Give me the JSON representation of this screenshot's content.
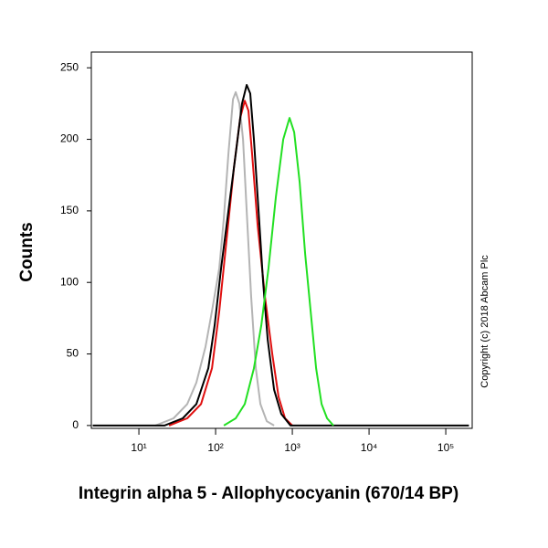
{
  "chart_data": {
    "type": "line",
    "xlabel": "Integrin alpha 5 - Allophycocyanin (670/14 BP)",
    "ylabel": "Counts",
    "annotation": "Copyright (c) 2018 Abcam Plc",
    "xscale": "log",
    "xlim": [
      2.4,
      221000
    ],
    "ylim": [
      -2,
      261
    ],
    "xticks": [
      {
        "value": 10,
        "label": "10¹"
      },
      {
        "value": 100,
        "label": "10²"
      },
      {
        "value": 1000,
        "label": "10³"
      },
      {
        "value": 10000,
        "label": "10⁴"
      },
      {
        "value": 100000,
        "label": "10⁵"
      }
    ],
    "yticks": [
      0,
      50,
      100,
      150,
      200,
      250
    ],
    "series": [
      {
        "color": "#b4b4b4",
        "x": [
          16.4,
          28.3,
          42.7,
          56.2,
          73.9,
          89.6,
          111.6,
          128,
          146.8,
          168.4,
          182.7,
          204,
          227.6,
          254,
          291,
          334,
          383,
          464,
          578
        ],
        "values": [
          0,
          5,
          15,
          30,
          55,
          80,
          110,
          145,
          190,
          228,
          233,
          225,
          200,
          150,
          90,
          40,
          15,
          3,
          0
        ]
      },
      {
        "color": "#e01010",
        "x": [
          24.7,
          42.7,
          64.5,
          89.6,
          111.6,
          139,
          173,
          209,
          240,
          268,
          299,
          353,
          440,
          547,
          662,
          803,
          1000
        ],
        "values": [
          0,
          5,
          15,
          40,
          80,
          130,
          180,
          215,
          227,
          220,
          190,
          140,
          90,
          50,
          20,
          5,
          0
        ]
      },
      {
        "color": "#000000",
        "x": [
          2.5,
          21.5,
          37.3,
          56.2,
          80.3,
          97.2,
          117.9,
          146.8,
          182.7,
          221,
          254,
          283,
          316,
          363,
          416,
          477,
          578,
          719,
          946,
          200000
        ],
        "values": [
          0,
          0,
          5,
          15,
          40,
          70,
          110,
          150,
          190,
          225,
          238,
          232,
          200,
          150,
          100,
          60,
          25,
          8,
          0,
          0
        ]
      },
      {
        "color": "#22e022",
        "x": [
          128,
          183,
          240,
          316,
          394,
          490,
          611,
          760,
          920,
          1057,
          1245,
          1468,
          1730,
          2040,
          2404,
          2834,
          3433
        ],
        "values": [
          0,
          5,
          15,
          40,
          70,
          110,
          160,
          200,
          215,
          205,
          170,
          120,
          80,
          40,
          15,
          5,
          0
        ]
      }
    ]
  }
}
